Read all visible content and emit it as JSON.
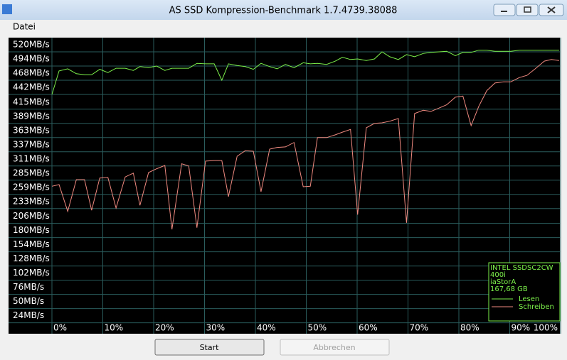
{
  "window": {
    "title": "AS SSD Kompression-Benchmark 1.7.4739.38088"
  },
  "menu": [
    "Datei"
  ],
  "chart_data": {
    "type": "line",
    "background": "#000000",
    "grid": true,
    "grid_color": "#2a5c5c",
    "legend": "bottom-right",
    "annotations": [
      "INTEL SSDSC2CW",
      "400i",
      "iaStorA",
      "167,68 GB"
    ],
    "x": [
      0,
      1.4,
      3.1,
      4.8,
      6.4,
      7.8,
      9.4,
      11.0,
      12.6,
      14.4,
      16.0,
      17.3,
      19.0,
      20.6,
      22.2,
      23.6,
      25.5,
      26.9,
      28.5,
      30.2,
      31.9,
      33.4,
      34.7,
      36.4,
      38.0,
      39.6,
      41.1,
      42.8,
      44.3,
      45.9,
      47.6,
      49.4,
      50.8,
      52.2,
      54.0,
      55.7,
      57.1,
      58.7,
      60.1,
      61.8,
      63.4,
      64.9,
      66.4,
      68.1,
      69.7,
      71.3,
      73.0,
      74.5,
      76.1,
      77.6,
      79.3,
      80.8,
      82.4,
      83.9,
      85.5,
      87.1,
      88.8,
      90.2,
      91.9,
      93.4,
      95.0,
      96.8,
      98.2,
      99.7
    ],
    "series": [
      {
        "name": "Lesen",
        "color": "#7cf04a",
        "values": [
          429,
          472,
          476,
          467,
          465,
          465,
          475,
          469,
          477,
          477,
          473,
          480,
          478,
          481,
          473,
          477,
          477,
          477,
          486,
          485,
          485,
          455,
          485,
          482,
          480,
          475,
          486,
          480,
          476,
          484,
          478,
          487,
          485,
          486,
          484,
          490,
          497,
          493,
          494,
          491,
          494,
          507,
          498,
          493,
          502,
          498,
          504,
          506,
          507,
          508,
          500,
          506,
          506,
          510,
          510,
          508,
          508,
          508,
          510,
          510,
          510,
          510,
          510,
          510
        ]
      },
      {
        "name": "Schreiben",
        "color": "#f08a80",
        "values": [
          261,
          264,
          215,
          273,
          273,
          217,
          276,
          277,
          221,
          278,
          285,
          226,
          286,
          293,
          299,
          182,
          302,
          298,
          185,
          307,
          308,
          308,
          242,
          316,
          326,
          325,
          251,
          329,
          332,
          333,
          341,
          260,
          261,
          350,
          350,
          355,
          360,
          365,
          209,
          368,
          376,
          377,
          380,
          385,
          194,
          394,
          400,
          398,
          404,
          410,
          424,
          426,
          372,
          407,
          436,
          450,
          452,
          452,
          460,
          464,
          476,
          490,
          493,
          491
        ]
      }
    ],
    "xlim": [
      0,
      100
    ],
    "xticks": [
      {
        "value": 0,
        "label": "0%"
      },
      {
        "value": 10,
        "label": "10%"
      },
      {
        "value": 20,
        "label": "20%"
      },
      {
        "value": 30,
        "label": "30%"
      },
      {
        "value": 40,
        "label": "40%"
      },
      {
        "value": 50,
        "label": "50%"
      },
      {
        "value": 60,
        "label": "60%"
      },
      {
        "value": 70,
        "label": "70%"
      },
      {
        "value": 80,
        "label": "80%"
      },
      {
        "value": 90,
        "label": "90%"
      },
      {
        "value": 100,
        "label": "100%"
      }
    ],
    "ylim": [
      -9,
      533
    ],
    "yticks": [
      {
        "value": 24,
        "label": "24MB/s"
      },
      {
        "value": 50,
        "label": "50MB/s"
      },
      {
        "value": 76,
        "label": "76MB/s"
      },
      {
        "value": 102,
        "label": "102MB/s"
      },
      {
        "value": 128,
        "label": "128MB/s"
      },
      {
        "value": 154,
        "label": "154MB/s"
      },
      {
        "value": 180,
        "label": "180MB/s"
      },
      {
        "value": 206,
        "label": "206MB/s"
      },
      {
        "value": 233,
        "label": "233MB/s"
      },
      {
        "value": 259,
        "label": "259MB/s"
      },
      {
        "value": 285,
        "label": "285MB/s"
      },
      {
        "value": 311,
        "label": "311MB/s"
      },
      {
        "value": 337,
        "label": "337MB/s"
      },
      {
        "value": 363,
        "label": "363MB/s"
      },
      {
        "value": 389,
        "label": "389MB/s"
      },
      {
        "value": 415,
        "label": "415MB/s"
      },
      {
        "value": 442,
        "label": "442MB/s"
      },
      {
        "value": 468,
        "label": "468MB/s"
      },
      {
        "value": 494,
        "label": "494MB/s"
      },
      {
        "value": 520,
        "label": "520MB/s"
      }
    ]
  },
  "buttons": [
    "Start",
    "Abbrechen"
  ]
}
